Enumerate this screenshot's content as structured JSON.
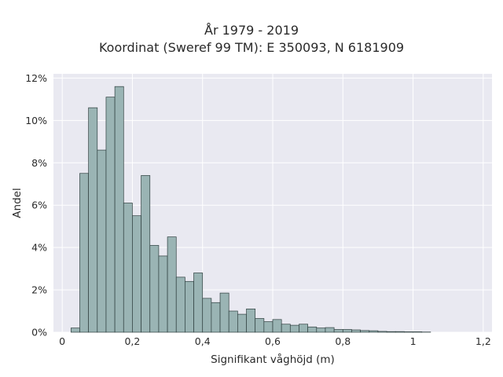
{
  "chart_data": {
    "type": "bar",
    "title": "År 1979 - 2019",
    "subtitle": "Koordinat (Sweref 99 TM): E 350093, N 6181909",
    "xlabel": "Signifikant våghöjd (m)",
    "ylabel": "Andel",
    "bin_width": 0.025,
    "bin_start": 0.0,
    "values": [
      0.0,
      0.2,
      7.5,
      10.6,
      8.6,
      11.1,
      11.6,
      6.1,
      5.5,
      7.4,
      4.1,
      3.6,
      4.5,
      2.6,
      2.4,
      2.8,
      1.6,
      1.4,
      1.85,
      1.0,
      0.85,
      1.1,
      0.65,
      0.5,
      0.6,
      0.38,
      0.33,
      0.38,
      0.25,
      0.2,
      0.22,
      0.13,
      0.13,
      0.11,
      0.08,
      0.07,
      0.04,
      0.03,
      0.03,
      0.02,
      0.02,
      0.01
    ],
    "xlim": [
      -0.025,
      1.225
    ],
    "ylim": [
      0,
      12.2
    ],
    "xticks": [
      "0",
      "0,2",
      "0,4",
      "0,6",
      "0,8",
      "1",
      "1,2"
    ],
    "yticks": [
      "0%",
      "2%",
      "4%",
      "6%",
      "8%",
      "10%",
      "12%"
    ],
    "grid": true,
    "bar_color": "#9ab4b4",
    "bar_edge": "#2f3f3f",
    "plot_bg": "#e9e9f1"
  }
}
